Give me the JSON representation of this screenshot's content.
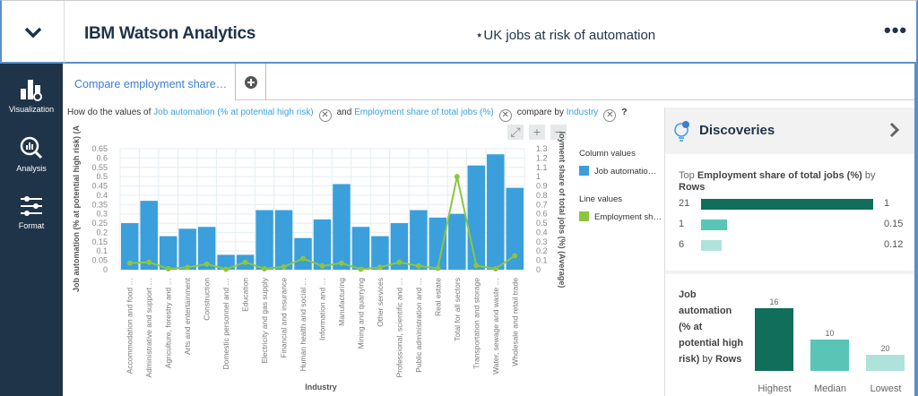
{
  "header": {
    "app_title": "IBM Watson Analytics",
    "doc_title": "⋆UK jobs at risk of automation",
    "more_label": "•••"
  },
  "sidebar": {
    "items": [
      {
        "label": "Visualization",
        "icon": "bar-chart-icon"
      },
      {
        "label": "Analysis",
        "icon": "magnifier-chart-icon"
      },
      {
        "label": "Format",
        "icon": "sliders-icon"
      }
    ]
  },
  "tabs": [
    {
      "label": "Compare employment share…"
    }
  ],
  "question": {
    "prefix": "How do the values of",
    "field1": "Job automation (% at potential high risk)",
    "and": "and",
    "field2": "Employment share of total jobs (%)",
    "compare": "compare by",
    "field3": "Industry",
    "help": "?"
  },
  "legend": {
    "column_title": "Column values",
    "column_item": "Job automatio…",
    "line_title": "Line values",
    "line_item": "Employment sh…"
  },
  "chart_data": {
    "type": "bar+line",
    "xlabel": "Industry",
    "ylabel_left": "Job automation (% at potential high risk) (A",
    "ylabel_right": "loyment share of total jobs (%) (Average)",
    "ylim_left": [
      0,
      0.65
    ],
    "ylim_right": [
      0,
      1.3
    ],
    "yticks_left": [
      "0",
      "0.05",
      "0.1",
      "0.15",
      "0.2",
      "0.25",
      "0.3",
      "0.35",
      "0.4",
      "0.45",
      "0.5",
      "0.55",
      "0.6",
      "0.65"
    ],
    "yticks_right": [
      "0",
      "0.1",
      "0.2",
      "0.3",
      "0.4",
      "0.5",
      "0.6",
      "0.7",
      "0.8",
      "0.9",
      "1",
      "1.1",
      "1.2",
      "1.3"
    ],
    "grid": true,
    "legend_position": "right",
    "categories": [
      "Accommodation and food …",
      "Administrative and support …",
      "Agriculture, forestry and …",
      "Arts and entertainment",
      "Construction",
      "Domestic personnel and …",
      "Education",
      "Electricity and gas supply",
      "Financial and insurance",
      "Human health and social …",
      "Information and …",
      "Manufacturing",
      "Mining and quarrying",
      "Other services",
      "Professional, scientific and …",
      "Public administration and …",
      "Real estate",
      "Total for all sectors",
      "Transportation and storage",
      "Water, sewage and waste …",
      "Wholesale and retail trade"
    ],
    "series": [
      {
        "name": "Job automatio…",
        "type": "bar",
        "axis": "left",
        "color": "#3a9fdb",
        "values": [
          0.25,
          0.37,
          0.18,
          0.22,
          0.23,
          0.08,
          0.08,
          0.32,
          0.32,
          0.17,
          0.27,
          0.46,
          0.23,
          0.18,
          0.25,
          0.32,
          0.28,
          0.3,
          0.56,
          0.62,
          0.44
        ]
      },
      {
        "name": "Employment sh…",
        "type": "line",
        "axis": "right",
        "color": "#8cc63f",
        "values": [
          0.07,
          0.08,
          0.01,
          0.025,
          0.06,
          0.005,
          0.08,
          0.01,
          0.03,
          0.12,
          0.04,
          0.07,
          0.005,
          0.025,
          0.08,
          0.04,
          0.015,
          1,
          0.045,
          0.01,
          0.15
        ]
      }
    ]
  },
  "discoveries": {
    "title": "Discoveries",
    "top": {
      "label_pre": "Top",
      "label_bold": "Employment share of total jobs (%)",
      "label_by": "by",
      "label_rows": "Rows",
      "rows": [
        {
          "row": "21",
          "value": "1",
          "fraction": 1,
          "color": "#106e5a"
        },
        {
          "row": "1",
          "value": "0.15",
          "fraction": 0.15,
          "color": "#5ac5b6"
        },
        {
          "row": "6",
          "value": "0.12",
          "fraction": 0.12,
          "color": "#afe2da"
        }
      ]
    },
    "range": {
      "label_bold": "Job automation (% at potential high risk)",
      "label_by": "by",
      "label_rows": "Rows",
      "bars": [
        {
          "label": "Highest",
          "row": "16",
          "color": "#106e5a"
        },
        {
          "label": "Median",
          "row": "10",
          "color": "#5ac5b6"
        },
        {
          "label": "Lowest",
          "row": "20",
          "color": "#afe2da"
        }
      ]
    }
  }
}
